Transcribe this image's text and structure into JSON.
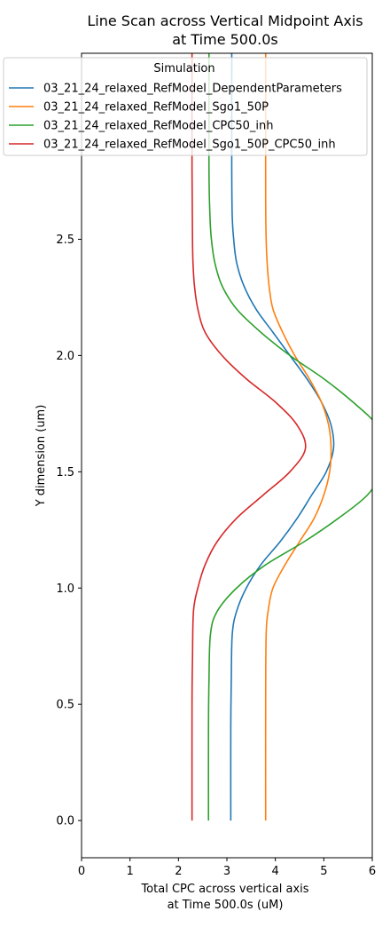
{
  "chart_data": {
    "type": "line",
    "title": [
      "Line Scan across Vertical Midpoint Axis",
      "at Time 500.0s"
    ],
    "xlabel": [
      "Total CPC across vertical axis",
      "at Time 500.0s (uM)"
    ],
    "ylabel": "Y dimension (um)",
    "xlim": [
      0,
      6
    ],
    "ylim": [
      -0.16,
      3.3
    ],
    "xticks": [
      0,
      1,
      2,
      3,
      4,
      5,
      6
    ],
    "yticks": [
      0.0,
      0.5,
      1.0,
      1.5,
      2.0,
      2.5
    ],
    "xtick_labels": [
      "0",
      "1",
      "2",
      "3",
      "4",
      "5",
      "6"
    ],
    "ytick_labels": [
      "0.0",
      "0.5",
      "1.0",
      "1.5",
      "2.0",
      "2.5"
    ],
    "grid": false,
    "legend": {
      "title": "Simulation",
      "placement": "top-right"
    },
    "series": [
      {
        "name": "03_21_24_relaxed_RefModel_DependentParameters",
        "color": "#1f77b4",
        "points": [
          [
            3.08,
            0.0
          ],
          [
            3.08,
            0.4
          ],
          [
            3.09,
            0.6
          ],
          [
            3.11,
            0.8
          ],
          [
            3.2,
            0.9
          ],
          [
            3.4,
            1.0
          ],
          [
            3.7,
            1.1
          ],
          [
            4.1,
            1.2
          ],
          [
            4.45,
            1.3
          ],
          [
            4.75,
            1.4
          ],
          [
            5.05,
            1.5
          ],
          [
            5.2,
            1.6
          ],
          [
            5.15,
            1.7
          ],
          [
            4.95,
            1.8
          ],
          [
            4.65,
            1.9
          ],
          [
            4.3,
            2.0
          ],
          [
            3.95,
            2.1
          ],
          [
            3.6,
            2.2
          ],
          [
            3.35,
            2.3
          ],
          [
            3.2,
            2.4
          ],
          [
            3.14,
            2.5
          ],
          [
            3.11,
            2.6
          ],
          [
            3.1,
            2.8
          ],
          [
            3.1,
            3.3
          ]
        ]
      },
      {
        "name": "03_21_24_relaxed_RefModel_Sgo1_50P",
        "color": "#ff7f0e",
        "points": [
          [
            3.8,
            0.0
          ],
          [
            3.8,
            0.5
          ],
          [
            3.81,
            0.8
          ],
          [
            3.85,
            0.9
          ],
          [
            3.95,
            1.0
          ],
          [
            4.2,
            1.1
          ],
          [
            4.5,
            1.2
          ],
          [
            4.8,
            1.3
          ],
          [
            5.0,
            1.4
          ],
          [
            5.12,
            1.5
          ],
          [
            5.15,
            1.6
          ],
          [
            5.1,
            1.7
          ],
          [
            4.95,
            1.8
          ],
          [
            4.7,
            1.9
          ],
          [
            4.4,
            2.0
          ],
          [
            4.15,
            2.1
          ],
          [
            3.95,
            2.2
          ],
          [
            3.87,
            2.3
          ],
          [
            3.83,
            2.4
          ],
          [
            3.81,
            2.5
          ],
          [
            3.8,
            2.7
          ],
          [
            3.8,
            3.3
          ]
        ]
      },
      {
        "name": "03_21_24_relaxed_RefModel_CPC50_inh",
        "color": "#2ca02c",
        "points": [
          [
            2.62,
            0.0
          ],
          [
            2.62,
            0.4
          ],
          [
            2.63,
            0.6
          ],
          [
            2.66,
            0.8
          ],
          [
            2.8,
            0.9
          ],
          [
            3.2,
            1.0
          ],
          [
            3.8,
            1.1
          ],
          [
            4.6,
            1.2
          ],
          [
            5.3,
            1.3
          ],
          [
            5.9,
            1.4
          ],
          [
            6.2,
            1.5
          ],
          [
            6.3,
            1.6
          ],
          [
            6.1,
            1.7
          ],
          [
            5.6,
            1.8
          ],
          [
            5.0,
            1.9
          ],
          [
            4.3,
            2.0
          ],
          [
            3.7,
            2.1
          ],
          [
            3.2,
            2.2
          ],
          [
            2.9,
            2.3
          ],
          [
            2.75,
            2.4
          ],
          [
            2.68,
            2.5
          ],
          [
            2.65,
            2.6
          ],
          [
            2.63,
            2.8
          ],
          [
            2.63,
            3.3
          ]
        ]
      },
      {
        "name": "03_21_24_relaxed_RefModel_Sgo1_50P_CPC50_inh",
        "color": "#d62728",
        "points": [
          [
            2.28,
            0.0
          ],
          [
            2.28,
            0.5
          ],
          [
            2.29,
            0.7
          ],
          [
            2.31,
            0.9
          ],
          [
            2.4,
            1.0
          ],
          [
            2.55,
            1.1
          ],
          [
            2.8,
            1.2
          ],
          [
            3.2,
            1.3
          ],
          [
            3.75,
            1.4
          ],
          [
            4.3,
            1.5
          ],
          [
            4.62,
            1.6
          ],
          [
            4.45,
            1.7
          ],
          [
            4.0,
            1.8
          ],
          [
            3.4,
            1.9
          ],
          [
            2.9,
            2.0
          ],
          [
            2.55,
            2.1
          ],
          [
            2.4,
            2.2
          ],
          [
            2.33,
            2.3
          ],
          [
            2.3,
            2.4
          ],
          [
            2.29,
            2.5
          ],
          [
            2.28,
            2.8
          ],
          [
            2.28,
            3.3
          ]
        ]
      }
    ]
  }
}
